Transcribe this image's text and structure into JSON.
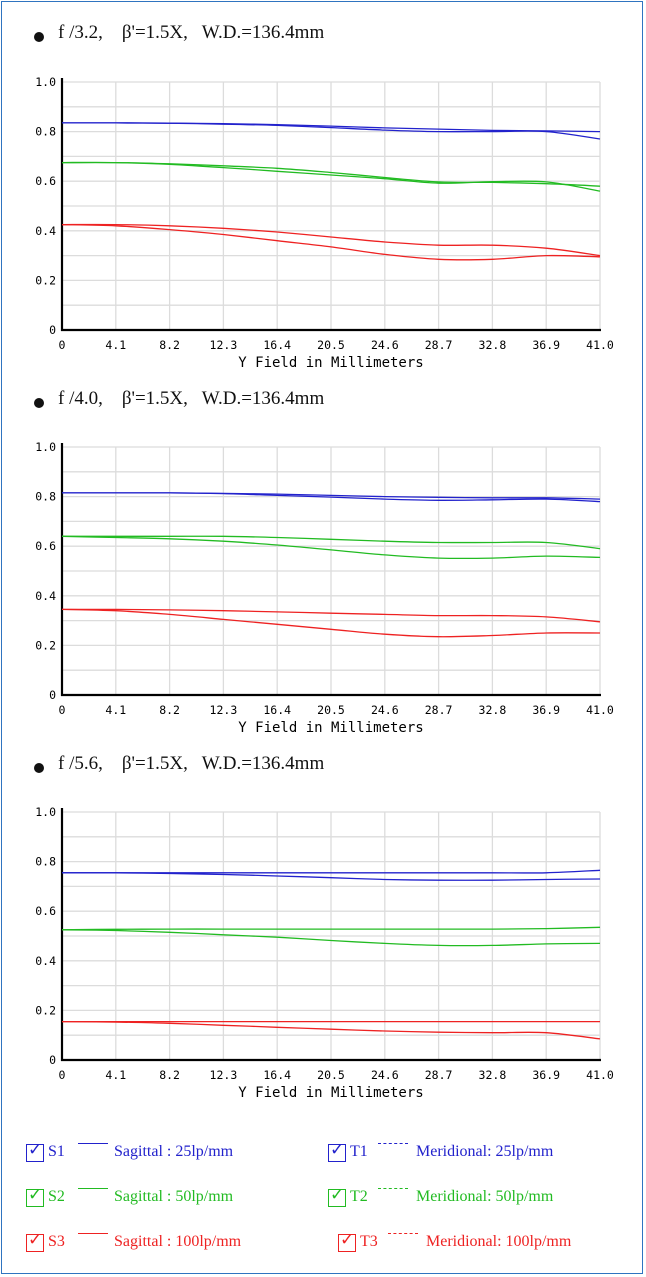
{
  "page": {
    "border_color": "#2f74c0"
  },
  "charts_common": {
    "xlabel": "Y Field in Millimeters",
    "x_ticks": [
      "0",
      "4.1",
      "8.2",
      "12.3",
      "16.4",
      "20.5",
      "24.6",
      "28.7",
      "32.8",
      "36.9",
      "41.0"
    ],
    "y_ticks": [
      "0",
      "0.2",
      "0.4",
      "0.6",
      "0.8",
      "1.0"
    ],
    "xlim": [
      0,
      41.0
    ],
    "ylim": [
      0,
      1.0
    ]
  },
  "headings": [
    "f /3.2,    β'=1.5X,   W.D.=136.4mm",
    "f /4.0,    β'=1.5X,   W.D.=136.4mm",
    "f /5.6,    β'=1.5X,   W.D.=136.4mm"
  ],
  "chart_data": [
    {
      "type": "line",
      "title": "f /3.2,  β'=1.5X,  W.D.=136.4mm",
      "xlabel": "Y Field in Millimeters",
      "ylabel": "",
      "xlim": [
        0,
        41.0
      ],
      "ylim": [
        0,
        1.0
      ],
      "grid": true,
      "x": [
        0,
        4.1,
        8.2,
        12.3,
        16.4,
        20.5,
        24.6,
        28.7,
        32.8,
        36.9,
        41.0
      ],
      "series": [
        {
          "name": "S1",
          "color": "#2222cc",
          "values": [
            0.835,
            0.835,
            0.834,
            0.832,
            0.828,
            0.822,
            0.815,
            0.81,
            0.805,
            0.803,
            0.8
          ]
        },
        {
          "name": "T1",
          "color": "#2222cc",
          "values": [
            0.835,
            0.835,
            0.834,
            0.83,
            0.825,
            0.816,
            0.806,
            0.8,
            0.8,
            0.8,
            0.77
          ]
        },
        {
          "name": "S2",
          "color": "#22bb22",
          "values": [
            0.675,
            0.675,
            0.67,
            0.662,
            0.652,
            0.635,
            0.615,
            0.597,
            0.595,
            0.59,
            0.58
          ]
        },
        {
          "name": "T2",
          "color": "#22bb22",
          "values": [
            0.675,
            0.675,
            0.668,
            0.655,
            0.64,
            0.625,
            0.61,
            0.592,
            0.598,
            0.597,
            0.56
          ]
        },
        {
          "name": "S3",
          "color": "#ee2222",
          "values": [
            0.425,
            0.425,
            0.42,
            0.41,
            0.395,
            0.375,
            0.355,
            0.342,
            0.342,
            0.33,
            0.3
          ]
        },
        {
          "name": "T3",
          "color": "#ee2222",
          "values": [
            0.425,
            0.42,
            0.405,
            0.385,
            0.36,
            0.335,
            0.305,
            0.285,
            0.285,
            0.3,
            0.295
          ]
        }
      ]
    },
    {
      "type": "line",
      "title": "f /4.0,  β'=1.5X,  W.D.=136.4mm",
      "xlabel": "Y Field in Millimeters",
      "ylabel": "",
      "xlim": [
        0,
        41.0
      ],
      "ylim": [
        0,
        1.0
      ],
      "grid": true,
      "x": [
        0,
        4.1,
        8.2,
        12.3,
        16.4,
        20.5,
        24.6,
        28.7,
        32.8,
        36.9,
        41.0
      ],
      "series": [
        {
          "name": "S1",
          "color": "#2222cc",
          "values": [
            0.815,
            0.815,
            0.815,
            0.813,
            0.81,
            0.805,
            0.8,
            0.797,
            0.795,
            0.795,
            0.79
          ]
        },
        {
          "name": "T1",
          "color": "#2222cc",
          "values": [
            0.815,
            0.815,
            0.815,
            0.812,
            0.805,
            0.798,
            0.79,
            0.785,
            0.787,
            0.79,
            0.78
          ]
        },
        {
          "name": "S2",
          "color": "#22bb22",
          "values": [
            0.64,
            0.64,
            0.64,
            0.64,
            0.635,
            0.628,
            0.62,
            0.615,
            0.615,
            0.615,
            0.59
          ]
        },
        {
          "name": "T2",
          "color": "#22bb22",
          "values": [
            0.64,
            0.635,
            0.63,
            0.62,
            0.605,
            0.585,
            0.565,
            0.552,
            0.552,
            0.56,
            0.555
          ]
        },
        {
          "name": "S3",
          "color": "#ee2222",
          "values": [
            0.345,
            0.345,
            0.343,
            0.34,
            0.335,
            0.33,
            0.325,
            0.32,
            0.32,
            0.315,
            0.295
          ]
        },
        {
          "name": "T3",
          "color": "#ee2222",
          "values": [
            0.345,
            0.34,
            0.325,
            0.305,
            0.285,
            0.265,
            0.245,
            0.235,
            0.24,
            0.25,
            0.25
          ]
        }
      ]
    },
    {
      "type": "line",
      "title": "f /5.6,  β'=1.5X,  W.D.=136.4mm",
      "xlabel": "Y Field in Millimeters",
      "ylabel": "",
      "xlim": [
        0,
        41.0
      ],
      "ylim": [
        0,
        1.0
      ],
      "grid": true,
      "x": [
        0,
        4.1,
        8.2,
        12.3,
        16.4,
        20.5,
        24.6,
        28.7,
        32.8,
        36.9,
        41.0
      ],
      "series": [
        {
          "name": "S1",
          "color": "#2222cc",
          "values": [
            0.755,
            0.755,
            0.755,
            0.755,
            0.755,
            0.755,
            0.755,
            0.755,
            0.755,
            0.755,
            0.765
          ]
        },
        {
          "name": "T1",
          "color": "#2222cc",
          "values": [
            0.755,
            0.755,
            0.752,
            0.748,
            0.742,
            0.735,
            0.728,
            0.725,
            0.725,
            0.728,
            0.73
          ]
        },
        {
          "name": "S2",
          "color": "#22bb22",
          "values": [
            0.525,
            0.527,
            0.528,
            0.528,
            0.528,
            0.528,
            0.528,
            0.528,
            0.528,
            0.53,
            0.535
          ]
        },
        {
          "name": "T2",
          "color": "#22bb22",
          "values": [
            0.525,
            0.522,
            0.515,
            0.505,
            0.495,
            0.482,
            0.47,
            0.462,
            0.462,
            0.468,
            0.47
          ]
        },
        {
          "name": "S3",
          "color": "#ee2222",
          "values": [
            0.155,
            0.155,
            0.155,
            0.155,
            0.155,
            0.155,
            0.155,
            0.155,
            0.155,
            0.155,
            0.155
          ]
        },
        {
          "name": "T3",
          "color": "#ee2222",
          "values": [
            0.155,
            0.153,
            0.148,
            0.14,
            0.132,
            0.124,
            0.117,
            0.112,
            0.11,
            0.11,
            0.085
          ]
        }
      ]
    }
  ],
  "legend": {
    "rows": [
      {
        "color": "#2222cc",
        "left": {
          "name": "S1",
          "line": "solid",
          "desc": "Sagittal : 25lp/mm"
        },
        "right": {
          "name": "T1",
          "line": "dashed",
          "desc": "Meridional: 25lp/mm"
        }
      },
      {
        "color": "#22bb22",
        "left": {
          "name": "S2",
          "line": "solid",
          "desc": "Sagittal : 50lp/mm"
        },
        "right": {
          "name": "T2",
          "line": "dashed",
          "desc": "Meridional: 50lp/mm"
        }
      },
      {
        "color": "#ee2222",
        "left": {
          "name": "S3",
          "line": "solid",
          "desc": "Sagittal : 100lp/mm"
        },
        "right": {
          "name": "T3",
          "line": "dashed",
          "desc": "Meridional: 100lp/mm"
        }
      }
    ]
  }
}
